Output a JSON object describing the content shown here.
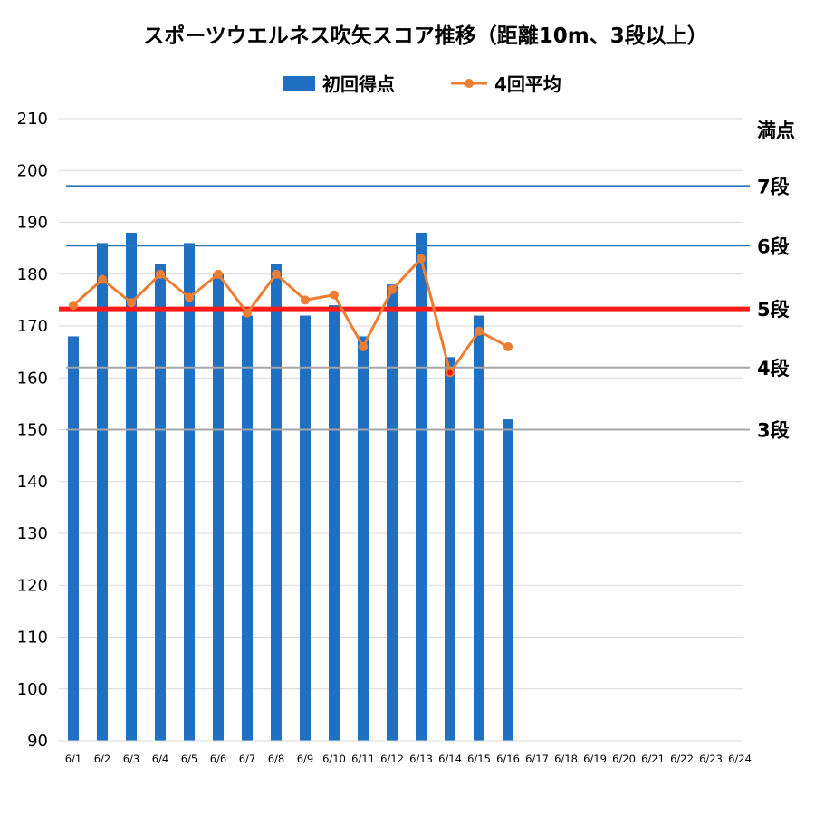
{
  "chart_data": {
    "type": "bar",
    "title": "スポーツウエルネス吹矢スコア推移（距離10m、3段以上）",
    "xlabel": "",
    "ylabel": "",
    "ylim": [
      90,
      210
    ],
    "yticks": [
      90,
      100,
      110,
      120,
      130,
      140,
      150,
      160,
      170,
      180,
      190,
      200,
      210
    ],
    "grid": true,
    "legend_position": "top",
    "categories": [
      "6/1",
      "6/2",
      "6/3",
      "6/4",
      "6/5",
      "6/6",
      "6/7",
      "6/8",
      "6/9",
      "6/10",
      "6/11",
      "6/12",
      "6/13",
      "6/14",
      "6/15",
      "6/16",
      "6/17",
      "6/18",
      "6/19",
      "6/20",
      "6/21",
      "6/22",
      "6/23",
      "6/24"
    ],
    "series": [
      {
        "name": "初回得点",
        "type": "bar",
        "color": "#1f6fc2",
        "values": [
          168,
          186,
          188,
          182,
          186,
          180,
          172,
          182,
          172,
          174,
          168,
          178,
          188,
          164,
          172,
          152,
          null,
          null,
          null,
          null,
          null,
          null,
          null,
          null
        ]
      },
      {
        "name": "4回平均",
        "type": "line",
        "color": "#ed7d31",
        "values": [
          174,
          179,
          174.5,
          180,
          175.5,
          180,
          172.5,
          180,
          175,
          176,
          166,
          177,
          183,
          161,
          169,
          166,
          null,
          null,
          null,
          null,
          null,
          null,
          null,
          null
        ],
        "highlight": {
          "index": 13,
          "color": "#e8141b"
        }
      }
    ],
    "reference_lines": [
      {
        "label": "満点",
        "value": 210,
        "color": "#d9d9d9",
        "label_color": "#000000"
      },
      {
        "label": "7段",
        "value": 197,
        "color": "#2e75b6",
        "label_color": "#000000"
      },
      {
        "label": "6段",
        "value": 185.5,
        "color": "#2e75b6",
        "label_color": "#000000"
      },
      {
        "label": "5段",
        "value": 173.3,
        "color": "#ff1a1a",
        "label_color": "#e8141b"
      },
      {
        "label": "4段",
        "value": 162,
        "color": "#a6a6a6",
        "label_color": "#000000"
      },
      {
        "label": "3段",
        "value": 150,
        "color": "#a6a6a6",
        "label_color": "#000000"
      }
    ]
  }
}
